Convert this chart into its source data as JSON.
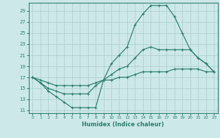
{
  "xlabel": "Humidex (Indice chaleur)",
  "bg_color": "#cce8e8",
  "grid_color": "#b0d0d0",
  "line_color": "#2e7d6e",
  "xlim": [
    -0.5,
    23.5
  ],
  "ylim": [
    10.5,
    30.5
  ],
  "yticks": [
    11,
    13,
    15,
    17,
    19,
    21,
    23,
    25,
    27,
    29
  ],
  "xticks": [
    0,
    1,
    2,
    3,
    4,
    5,
    6,
    7,
    8,
    9,
    10,
    11,
    12,
    13,
    14,
    15,
    16,
    17,
    18,
    19,
    20,
    21,
    22,
    23
  ],
  "curve1_x": [
    0,
    1,
    2,
    3,
    4,
    5,
    6,
    7,
    8,
    9,
    10,
    11,
    12,
    13,
    14,
    15,
    16,
    17,
    18,
    19,
    20,
    21,
    22,
    23
  ],
  "curve1_y": [
    17.0,
    16.0,
    14.5,
    13.5,
    12.5,
    11.5,
    11.5,
    11.5,
    11.5,
    16.5,
    19.5,
    21.0,
    22.5,
    26.5,
    28.5,
    30.0,
    30.0,
    30.0,
    28.0,
    25.0,
    22.0,
    20.5,
    19.5,
    18.0
  ],
  "curve2_x": [
    0,
    1,
    2,
    3,
    4,
    5,
    6,
    7,
    8,
    9,
    10,
    11,
    12,
    13,
    14,
    15,
    16,
    17,
    18,
    19,
    20,
    21,
    22,
    23
  ],
  "curve2_y": [
    17.0,
    16.0,
    15.0,
    14.5,
    14.0,
    14.0,
    14.0,
    14.0,
    15.5,
    16.5,
    17.5,
    18.5,
    19.0,
    20.5,
    22.0,
    22.5,
    22.0,
    22.0,
    22.0,
    22.0,
    22.0,
    20.5,
    19.5,
    18.0
  ],
  "curve3_x": [
    0,
    1,
    2,
    3,
    4,
    5,
    6,
    7,
    8,
    9,
    10,
    11,
    12,
    13,
    14,
    15,
    16,
    17,
    18,
    19,
    20,
    21,
    22,
    23
  ],
  "curve3_y": [
    17.0,
    16.5,
    16.0,
    15.5,
    15.5,
    15.5,
    15.5,
    15.5,
    16.0,
    16.5,
    16.5,
    17.0,
    17.0,
    17.5,
    18.0,
    18.0,
    18.0,
    18.0,
    18.5,
    18.5,
    18.5,
    18.5,
    18.0,
    18.0
  ]
}
